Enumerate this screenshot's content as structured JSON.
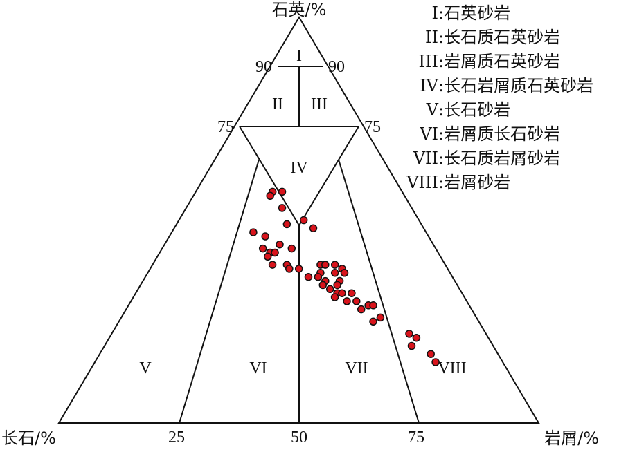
{
  "axes": {
    "top": "石英/%",
    "left": "长石/%",
    "right": "岩屑/%"
  },
  "ticks": {
    "left_90": "90",
    "right_90": "90",
    "left_75": "75",
    "right_75": "75",
    "base_25": "25",
    "base_50": "50",
    "base_75": "75"
  },
  "zones": {
    "z1": "I",
    "z2": "II",
    "z3": "III",
    "z4": "IV",
    "z5": "V",
    "z6": "VI",
    "z7": "VII",
    "z8": "VIII"
  },
  "legend": [
    {
      "code": "I",
      "text": ":石英砂岩"
    },
    {
      "code": "II",
      "text": ":长石质石英砂岩"
    },
    {
      "code": "III",
      "text": ":岩屑质石英砂岩"
    },
    {
      "code": "IV",
      "text": ":长石岩屑质石英砂岩"
    },
    {
      "code": "V",
      "text": ":长石砂岩"
    },
    {
      "code": "VI",
      "text": ":岩屑质长石砂岩"
    },
    {
      "code": "VII",
      "text": ":长石质岩屑砂岩"
    },
    {
      "code": "VIII",
      "text": ":岩屑砂岩"
    }
  ],
  "colors": {
    "point_fill": "#d8141c",
    "point_stroke": "#111111",
    "line": "#111111"
  },
  "chart_data": {
    "type": "scatter",
    "note_axes": "ternary: Q = 石英 (top), F = 长石 (left), R = 岩屑 (right); percentages",
    "points": [
      {
        "Q": 57,
        "F": 27,
        "R": 16
      },
      {
        "Q": 56,
        "F": 28,
        "R": 16
      },
      {
        "Q": 57,
        "F": 25,
        "R": 18
      },
      {
        "Q": 53,
        "F": 27,
        "R": 20
      },
      {
        "Q": 49,
        "F": 28,
        "R": 23
      },
      {
        "Q": 50,
        "F": 24,
        "R": 26
      },
      {
        "Q": 48,
        "F": 23,
        "R": 29
      },
      {
        "Q": 47,
        "F": 36,
        "R": 17
      },
      {
        "Q": 46,
        "F": 34,
        "R": 20
      },
      {
        "Q": 44,
        "F": 32,
        "R": 24
      },
      {
        "Q": 43,
        "F": 30,
        "R": 27
      },
      {
        "Q": 43,
        "F": 36,
        "R": 21
      },
      {
        "Q": 42,
        "F": 35,
        "R": 23
      },
      {
        "Q": 42,
        "F": 34,
        "R": 24
      },
      {
        "Q": 41,
        "F": 36,
        "R": 23
      },
      {
        "Q": 39,
        "F": 36,
        "R": 25
      },
      {
        "Q": 39,
        "F": 33,
        "R": 28
      },
      {
        "Q": 38,
        "F": 33,
        "R": 29
      },
      {
        "Q": 38,
        "F": 31,
        "R": 31
      },
      {
        "Q": 39,
        "F": 26,
        "R": 35
      },
      {
        "Q": 39,
        "F": 25,
        "R": 36
      },
      {
        "Q": 39,
        "F": 23,
        "R": 38
      },
      {
        "Q": 38,
        "F": 22,
        "R": 40
      },
      {
        "Q": 37,
        "F": 22,
        "R": 41
      },
      {
        "Q": 37,
        "F": 24,
        "R": 39
      },
      {
        "Q": 37,
        "F": 27,
        "R": 36
      },
      {
        "Q": 36,
        "F": 28,
        "R": 36
      },
      {
        "Q": 36,
        "F": 30,
        "R": 34
      },
      {
        "Q": 35,
        "F": 27,
        "R": 38
      },
      {
        "Q": 35,
        "F": 24,
        "R": 41
      },
      {
        "Q": 34,
        "F": 28,
        "R": 38
      },
      {
        "Q": 33,
        "F": 27,
        "R": 40
      },
      {
        "Q": 34,
        "F": 25,
        "R": 41
      },
      {
        "Q": 32,
        "F": 26,
        "R": 42
      },
      {
        "Q": 32,
        "F": 25,
        "R": 43
      },
      {
        "Q": 31,
        "F": 27,
        "R": 42
      },
      {
        "Q": 32,
        "F": 23,
        "R": 45
      },
      {
        "Q": 30,
        "F": 25,
        "R": 45
      },
      {
        "Q": 30,
        "F": 23,
        "R": 47
      },
      {
        "Q": 29,
        "F": 21,
        "R": 50
      },
      {
        "Q": 29,
        "F": 20,
        "R": 51
      },
      {
        "Q": 28,
        "F": 23,
        "R": 49
      },
      {
        "Q": 26,
        "F": 20,
        "R": 54
      },
      {
        "Q": 25,
        "F": 22,
        "R": 53
      },
      {
        "Q": 22,
        "F": 16,
        "R": 62
      },
      {
        "Q": 21,
        "F": 15,
        "R": 64
      },
      {
        "Q": 19,
        "F": 17,
        "R": 64
      },
      {
        "Q": 17,
        "F": 14,
        "R": 69
      },
      {
        "Q": 15,
        "F": 14,
        "R": 71
      }
    ]
  }
}
